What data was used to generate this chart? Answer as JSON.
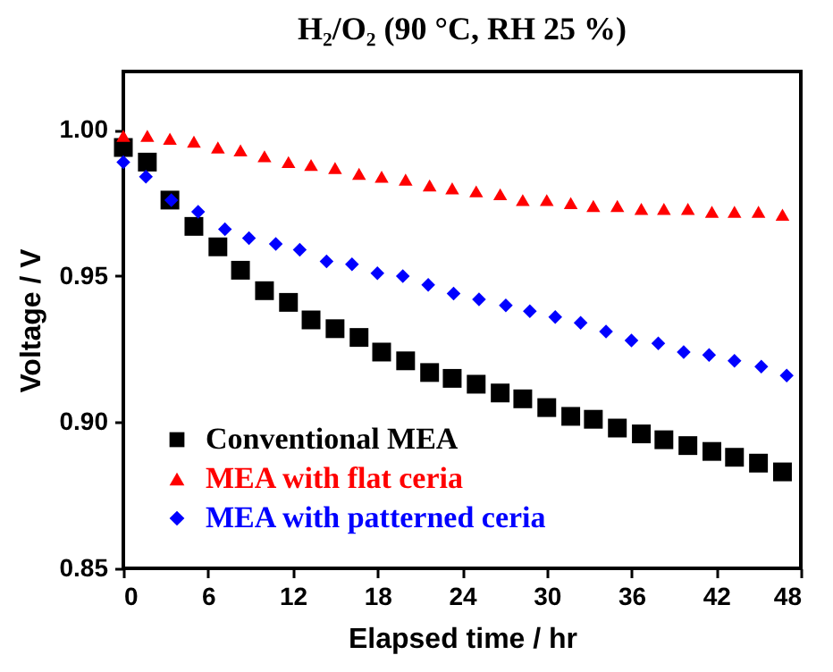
{
  "chart_data": {
    "type": "scatter",
    "title": "H₂/O₂ (90 °C, RH 25 %)",
    "xlabel": "Elapsed time / hr",
    "ylabel": "Voltage / V",
    "xlim": [
      0,
      48
    ],
    "xticks": [
      0,
      6,
      12,
      18,
      24,
      30,
      36,
      42,
      48
    ],
    "ylim": [
      0.85,
      1.02
    ],
    "yticks": [
      {
        "value": 0.85,
        "label": "0.85"
      },
      {
        "value": 0.9,
        "label": "0.90"
      },
      {
        "value": 0.95,
        "label": "0.95"
      },
      {
        "value": 1.0,
        "label": "1.00"
      }
    ],
    "grid": false,
    "legend": "bottom left",
    "series": [
      {
        "name": "Conventional MEA",
        "color": "#000000",
        "marker": "square",
        "x": [
          0,
          1.7,
          3.3,
          5,
          6.7,
          8.3,
          10,
          11.7,
          13.3,
          15,
          16.7,
          18.3,
          20,
          21.7,
          23.3,
          25,
          26.7,
          28.3,
          30,
          31.7,
          33.3,
          35,
          36.7,
          38.3,
          40,
          41.7,
          43.3,
          45,
          46.7
        ],
        "values": [
          0.994,
          0.989,
          0.976,
          0.967,
          0.96,
          0.952,
          0.945,
          0.941,
          0.935,
          0.932,
          0.929,
          0.924,
          0.921,
          0.917,
          0.915,
          0.913,
          0.91,
          0.908,
          0.905,
          0.902,
          0.901,
          0.898,
          0.896,
          0.894,
          0.892,
          0.89,
          0.888,
          0.886,
          0.883
        ]
      },
      {
        "name": "MEA with flat ceria",
        "color": "#ff0000",
        "marker": "triangle",
        "x": [
          0,
          1.7,
          3.3,
          5,
          6.7,
          8.3,
          10,
          11.7,
          13.3,
          15,
          16.7,
          18.3,
          20,
          21.7,
          23.3,
          25,
          26.7,
          28.3,
          30,
          31.7,
          33.3,
          35,
          36.7,
          38.3,
          40,
          41.7,
          43.3,
          45,
          46.7
        ],
        "values": [
          0.998,
          0.998,
          0.997,
          0.996,
          0.994,
          0.993,
          0.991,
          0.989,
          0.988,
          0.987,
          0.985,
          0.984,
          0.983,
          0.981,
          0.98,
          0.979,
          0.978,
          0.976,
          0.976,
          0.975,
          0.974,
          0.974,
          0.973,
          0.973,
          0.973,
          0.972,
          0.972,
          0.972,
          0.971
        ]
      },
      {
        "name": "MEA with patterned ceria",
        "color": "#0000ff",
        "marker": "diamond",
        "x": [
          0,
          1.6,
          3.4,
          5.3,
          7.2,
          8.9,
          10.8,
          12.5,
          14.4,
          16.2,
          18,
          19.8,
          21.6,
          23.4,
          25.2,
          27.1,
          28.8,
          30.6,
          32.4,
          34.2,
          36,
          37.9,
          39.7,
          41.5,
          43.3,
          45.2,
          47
        ],
        "values": [
          0.989,
          0.984,
          0.976,
          0.972,
          0.966,
          0.963,
          0.961,
          0.959,
          0.955,
          0.954,
          0.951,
          0.95,
          0.947,
          0.944,
          0.942,
          0.94,
          0.938,
          0.936,
          0.934,
          0.931,
          0.928,
          0.927,
          0.924,
          0.923,
          0.921,
          0.919,
          0.916
        ]
      }
    ]
  }
}
